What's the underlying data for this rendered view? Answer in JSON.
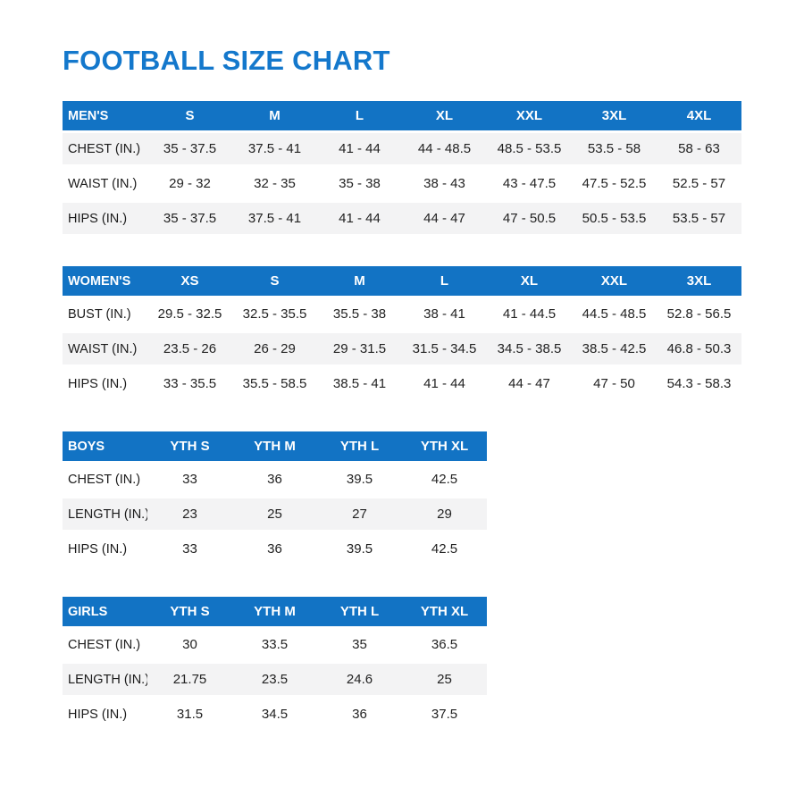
{
  "page_title": "FOOTBALL SIZE CHART",
  "colors": {
    "header_blue": "#1273C4",
    "title_blue": "#1478CC",
    "row_stripe": "#F3F3F4",
    "text": "#222222"
  },
  "chart_data": [
    {
      "type": "table",
      "id": "mens",
      "header": [
        "MEN'S",
        "S",
        "M",
        "L",
        "XL",
        "XXL",
        "3XL",
        "4XL"
      ],
      "rows": [
        {
          "label": "CHEST (IN.)",
          "values": [
            "35 - 37.5",
            "37.5 - 41",
            "41 - 44",
            "44 - 48.5",
            "48.5 - 53.5",
            "53.5 - 58",
            "58 - 63"
          ]
        },
        {
          "label": "WAIST (IN.)",
          "values": [
            "29 - 32",
            "32 - 35",
            "35 - 38",
            "38 - 43",
            "43 - 47.5",
            "47.5 - 52.5",
            "52.5 - 57"
          ]
        },
        {
          "label": "HIPS (IN.)",
          "values": [
            "35 - 37.5",
            "37.5 - 41",
            "41 - 44",
            "44 - 47",
            "47 - 50.5",
            "50.5 - 53.5",
            "53.5 - 57"
          ]
        }
      ],
      "striped_rows": [
        0,
        2
      ]
    },
    {
      "type": "table",
      "id": "womens",
      "header": [
        "WOMEN'S",
        "XS",
        "S",
        "M",
        "L",
        "XL",
        "XXL",
        "3XL"
      ],
      "rows": [
        {
          "label": "BUST (IN.)",
          "values": [
            "29.5 - 32.5",
            "32.5 - 35.5",
            "35.5 - 38",
            "38 - 41",
            "41 - 44.5",
            "44.5 - 48.5",
            "52.8 - 56.5"
          ]
        },
        {
          "label": "WAIST (IN.)",
          "values": [
            "23.5 - 26",
            "26 - 29",
            "29 - 31.5",
            "31.5 - 34.5",
            "34.5 - 38.5",
            "38.5 - 42.5",
            "46.8 - 50.3"
          ]
        },
        {
          "label": "HIPS (IN.)",
          "values": [
            "33 - 35.5",
            "35.5 - 58.5",
            "38.5 - 41",
            "41 - 44",
            "44 - 47",
            "47 - 50",
            "54.3 - 58.3"
          ]
        }
      ],
      "striped_rows": [
        1
      ]
    },
    {
      "type": "table",
      "id": "boys",
      "header": [
        "BOYS",
        "YTH S",
        "YTH M",
        "YTH L",
        "YTH XL"
      ],
      "rows": [
        {
          "label": "CHEST (IN.)",
          "values": [
            "33",
            "36",
            "39.5",
            "42.5"
          ]
        },
        {
          "label": "LENGTH (IN.)",
          "values": [
            "23",
            "25",
            "27",
            "29"
          ]
        },
        {
          "label": "HIPS (IN.)",
          "values": [
            "33",
            "36",
            "39.5",
            "42.5"
          ]
        }
      ],
      "striped_rows": [
        1
      ]
    },
    {
      "type": "table",
      "id": "girls",
      "header": [
        "GIRLS",
        "YTH S",
        "YTH M",
        "YTH L",
        "YTH XL"
      ],
      "rows": [
        {
          "label": "CHEST (IN.)",
          "values": [
            "30",
            "33.5",
            "35",
            "36.5"
          ]
        },
        {
          "label": "LENGTH (IN.)",
          "values": [
            "21.75",
            "23.5",
            "24.6",
            "25"
          ]
        },
        {
          "label": "HIPS (IN.)",
          "values": [
            "31.5",
            "34.5",
            "36",
            "37.5"
          ]
        }
      ],
      "striped_rows": [
        1
      ]
    }
  ]
}
